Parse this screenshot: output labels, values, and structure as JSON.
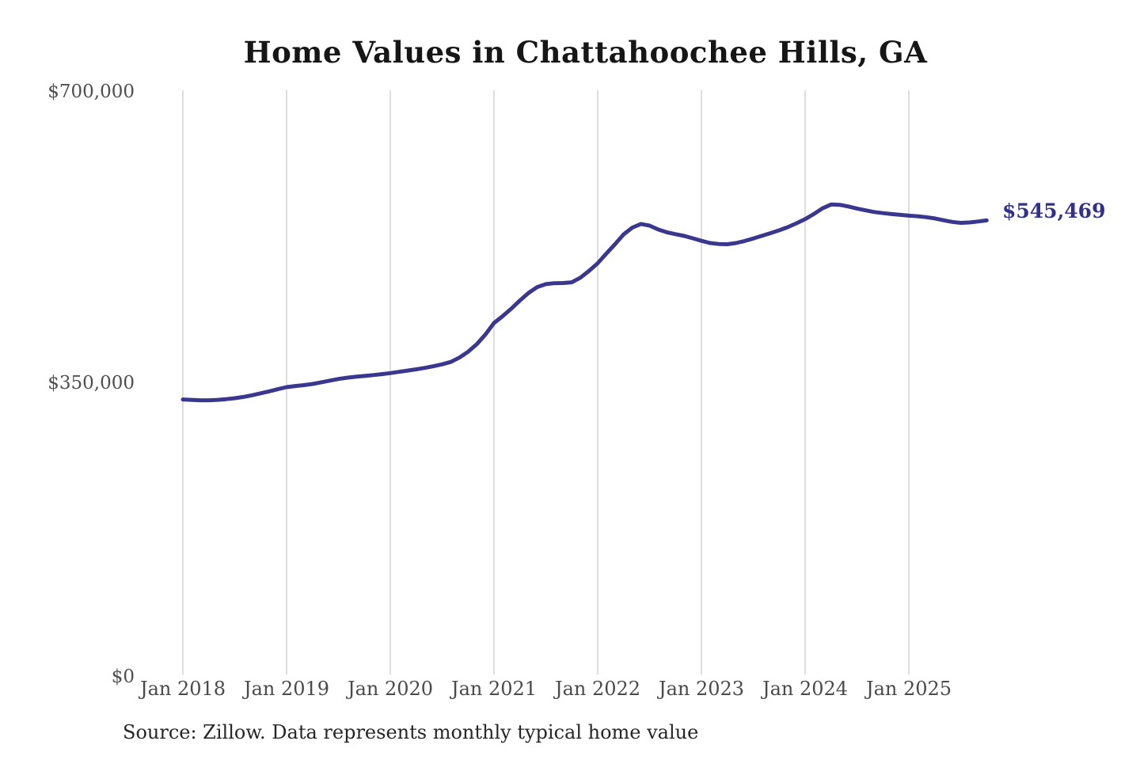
{
  "chart": {
    "title": "Home Values in Chattahoochee Hills, GA",
    "end_label": "$545,469",
    "source": "Source: Zillow. Data represents monthly typical home value",
    "line_color": "#3a378f",
    "label_color": "#32308d",
    "gridline_color": "#cccccc"
  },
  "chart_data": {
    "type": "line",
    "title": "Home Values in Chattahoochee Hills, GA",
    "xlabel": "",
    "ylabel": "",
    "ylim": [
      0,
      700000
    ],
    "y_tick_labels": [
      "$700,000",
      "$350,000",
      "$0"
    ],
    "y_tick_values": [
      700000,
      350000,
      0
    ],
    "x_tick_labels": [
      "Jan 2018",
      "Jan 2019",
      "Jan 2020",
      "Jan 2021",
      "Jan 2022",
      "Jan 2023",
      "Jan 2024",
      "Jan 2025"
    ],
    "x_start_month": "2018-01",
    "x_end_month": "2025-10",
    "grid": "vertical-only",
    "legend": false,
    "final_value": 545469,
    "series": [
      {
        "name": "Monthly typical home value",
        "values": [
          331500,
          331000,
          330500,
          330500,
          331000,
          331800,
          333000,
          334500,
          336500,
          338800,
          341200,
          343800,
          346200,
          347500,
          348600,
          350000,
          352000,
          354000,
          356000,
          357500,
          358600,
          359600,
          360600,
          361700,
          363000,
          364500,
          366000,
          367500,
          369200,
          371200,
          373500,
          376300,
          381500,
          388500,
          397500,
          409000,
          422800,
          431000,
          440000,
          449800,
          458800,
          465800,
          469300,
          470400,
          470600,
          471500,
          477000,
          485200,
          494300,
          505800,
          517000,
          528800,
          536800,
          541200,
          539200,
          534600,
          531200,
          529000,
          526900,
          524100,
          521000,
          518400,
          517200,
          517000,
          518400,
          520800,
          523800,
          527000,
          530200,
          533600,
          537400,
          542000,
          546900,
          553000,
          559800,
          564400,
          564100,
          562100,
          559600,
          557400,
          555500,
          554100,
          553000,
          552100,
          551100,
          550400,
          549300,
          547800,
          545600,
          543600,
          542500,
          543000,
          544100,
          545469
        ]
      }
    ]
  }
}
